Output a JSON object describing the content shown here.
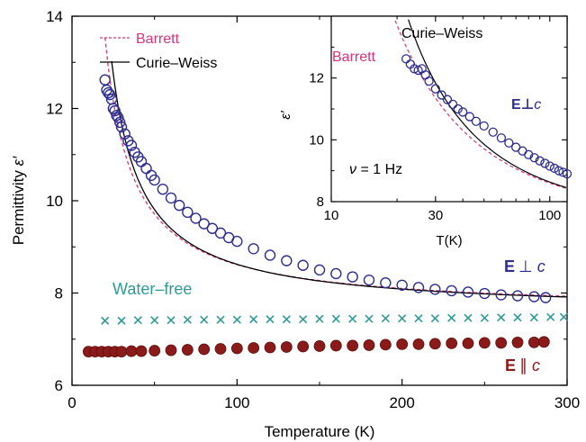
{
  "chart_data": [
    {
      "type": "scatter",
      "xlabel": "Temperature (K)",
      "ylabel": "Permittivity ε′",
      "xlim": [
        0,
        300
      ],
      "ylim": [
        6,
        14
      ],
      "xticks": [
        0,
        100,
        200,
        300
      ],
      "yticks": [
        6,
        8,
        10,
        12,
        14
      ],
      "grid": false,
      "series": [
        {
          "name": "E ⊥ c",
          "marker": "open-circle",
          "color": "#2e2e8f",
          "x": [
            20,
            21,
            22,
            23,
            24,
            25,
            26,
            27,
            28,
            29,
            30,
            32,
            34,
            36,
            38,
            40,
            42,
            45,
            48,
            50,
            55,
            60,
            65,
            70,
            75,
            80,
            85,
            90,
            95,
            100,
            110,
            120,
            130,
            140,
            150,
            160,
            170,
            180,
            190,
            200,
            210,
            220,
            230,
            240,
            250,
            260,
            270,
            280,
            287
          ],
          "y": [
            12.62,
            12.4,
            12.34,
            12.3,
            12.2,
            12.0,
            11.95,
            11.85,
            11.8,
            11.7,
            11.6,
            11.45,
            11.3,
            11.2,
            11.05,
            10.95,
            10.85,
            10.7,
            10.55,
            10.45,
            10.25,
            10.06,
            9.9,
            9.75,
            9.62,
            9.5,
            9.4,
            9.3,
            9.2,
            9.12,
            8.96,
            8.82,
            8.7,
            8.6,
            8.5,
            8.42,
            8.35,
            8.28,
            8.22,
            8.17,
            8.12,
            8.08,
            8.05,
            8.02,
            7.99,
            7.96,
            7.94,
            7.92,
            7.9
          ]
        },
        {
          "name": "Water–free",
          "marker": "x",
          "color": "#2e9b96",
          "x": [
            20,
            30,
            40,
            50,
            60,
            70,
            80,
            90,
            100,
            110,
            120,
            130,
            140,
            150,
            160,
            170,
            180,
            190,
            200,
            210,
            220,
            230,
            240,
            250,
            260,
            270,
            280,
            290,
            298
          ],
          "y": [
            7.4,
            7.4,
            7.41,
            7.41,
            7.41,
            7.42,
            7.42,
            7.42,
            7.42,
            7.43,
            7.43,
            7.43,
            7.43,
            7.44,
            7.44,
            7.44,
            7.44,
            7.45,
            7.45,
            7.45,
            7.45,
            7.46,
            7.46,
            7.46,
            7.47,
            7.47,
            7.47,
            7.48,
            7.48
          ]
        },
        {
          "name": "E ∥ c",
          "marker": "filled-circle",
          "color": "#8b1a1a",
          "x": [
            10,
            14,
            18,
            22,
            26,
            30,
            36,
            42,
            50,
            60,
            70,
            80,
            90,
            100,
            110,
            120,
            130,
            140,
            150,
            160,
            170,
            180,
            190,
            200,
            210,
            220,
            230,
            240,
            250,
            260,
            270,
            280,
            286
          ],
          "y": [
            6.73,
            6.73,
            6.73,
            6.73,
            6.73,
            6.73,
            6.74,
            6.74,
            6.75,
            6.76,
            6.77,
            6.78,
            6.79,
            6.8,
            6.81,
            6.82,
            6.83,
            6.84,
            6.85,
            6.86,
            6.86,
            6.87,
            6.88,
            6.89,
            6.89,
            6.9,
            6.91,
            6.91,
            6.92,
            6.92,
            6.93,
            6.93,
            6.94
          ]
        }
      ],
      "fits": [
        {
          "name": "Barrett",
          "style": "dashed",
          "color": "#d6337a"
        },
        {
          "name": "Curie–Weiss",
          "style": "solid",
          "color": "#000000"
        }
      ],
      "annotations": [
        "Barrett",
        "Curie–Weiss",
        "Water–free",
        "E ⊥ c",
        "E ∥ c"
      ],
      "colors": {
        "perp": "#2e2e8f",
        "waterfree": "#2e9b96",
        "parallel": "#8b1a1a",
        "barrett": "#d6337a",
        "curie": "#000000"
      }
    },
    {
      "type": "scatter",
      "xscale": "log",
      "xlabel": "T(K)",
      "ylabel": "ε′",
      "xlim": [
        10,
        120
      ],
      "ylim": [
        8,
        14
      ],
      "xticks": [
        10,
        30,
        100
      ],
      "yticks": [
        8,
        10,
        12
      ],
      "grid": false,
      "series": [
        {
          "name": "E ⊥ c",
          "marker": "open-circle",
          "color": "#2e2e8f",
          "x": [
            22,
            23,
            24,
            25,
            26,
            27,
            28,
            30,
            32,
            34,
            36,
            38,
            40,
            43,
            46,
            50,
            55,
            60,
            65,
            70,
            75,
            80,
            85,
            90,
            95,
            100,
            105,
            110,
            115,
            120
          ],
          "y": [
            12.62,
            12.45,
            12.3,
            12.25,
            12.3,
            12.1,
            11.9,
            11.65,
            11.45,
            11.3,
            11.15,
            11.0,
            10.9,
            10.75,
            10.6,
            10.45,
            10.25,
            10.06,
            9.9,
            9.76,
            9.64,
            9.52,
            9.42,
            9.32,
            9.24,
            9.15,
            9.08,
            9.0,
            8.95,
            8.9
          ]
        }
      ],
      "annotations": [
        "Curie–Weiss",
        "Barrett",
        "E⊥c",
        "ν = 1 Hz"
      ]
    }
  ],
  "labels": {
    "main_barrett": "Barrett",
    "main_curie": "Curie–Weiss",
    "water_free": "Water–free",
    "perp_prefix": "E",
    "perp_symbol": "⊥",
    "c": "c",
    "par_prefix": "E",
    "par_symbol": "∥",
    "inset_curie": "Curie–Weiss",
    "inset_barrett": "Barrett",
    "inset_perp": "E⊥",
    "inset_c": "c",
    "freq_nu": "ν",
    "freq_value": " = 1 Hz",
    "x_title": "Temperature (K)",
    "y_title_main": "Permittivity ",
    "y_title_eps": "ε′",
    "inset_x_title": "T(K)",
    "inset_y_title": "ε′"
  }
}
